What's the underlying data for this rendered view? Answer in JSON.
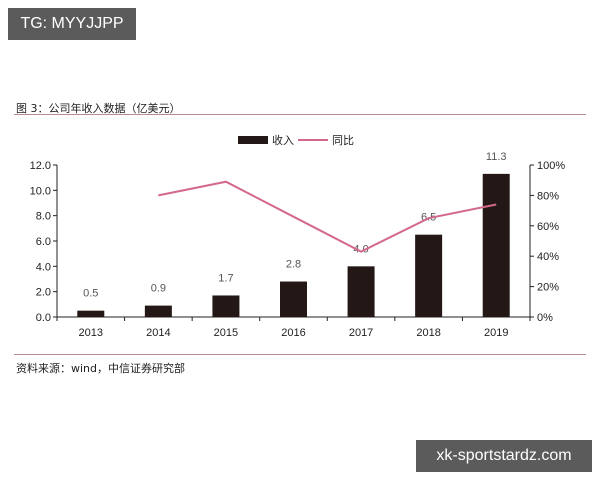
{
  "watermarks": {
    "top_left": "TG: MYYJJPP",
    "bottom_right": "xk-sportstardz.com"
  },
  "figure": {
    "title": "图 3：公司年收入数据（亿美元）",
    "source": "资料来源：wind，中信证券研究部"
  },
  "colors": {
    "bar": "#231815",
    "line": "#d4688a",
    "rule": "#b98a8e"
  },
  "chart_data": {
    "type": "bar+line",
    "title": "图 3：公司年收入数据（亿美元）",
    "categories": [
      "2013",
      "2014",
      "2015",
      "2016",
      "2017",
      "2018",
      "2019"
    ],
    "series": [
      {
        "name": "收入",
        "type": "bar",
        "axis": "left",
        "values": [
          0.5,
          0.9,
          1.7,
          2.8,
          4.0,
          6.5,
          11.3
        ],
        "labels": [
          "0.5",
          "0.9",
          "1.7",
          "2.8",
          "4.0",
          "6.5",
          "11.3"
        ]
      },
      {
        "name": "同比",
        "type": "line",
        "axis": "right",
        "values": [
          null,
          80,
          89,
          66,
          43,
          65,
          74
        ],
        "unit": "%"
      }
    ],
    "y_left": {
      "ylim": [
        0,
        12
      ],
      "ticks": [
        "0.0",
        "2.0",
        "4.0",
        "6.0",
        "8.0",
        "10.0",
        "12.0"
      ]
    },
    "y_right": {
      "ylim": [
        0,
        100
      ],
      "ticks": [
        "0%",
        "20%",
        "40%",
        "60%",
        "80%",
        "100%"
      ]
    },
    "legend": {
      "position": "top-center",
      "entries": [
        "收入",
        "同比"
      ]
    },
    "grid": false,
    "xlabel": "",
    "ylabel": ""
  }
}
